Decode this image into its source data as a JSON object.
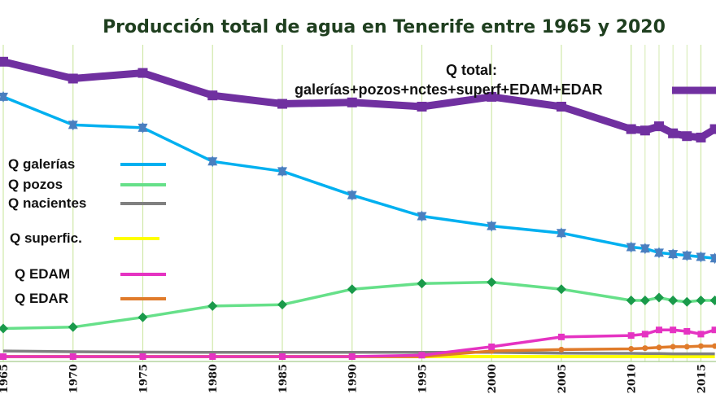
{
  "chart_data": {
    "type": "line",
    "title": "Producción total de agua  en Tenerife entre 1965 y 2020",
    "xlabel": "",
    "ylabel": "",
    "x": [
      1965,
      1970,
      1975,
      1980,
      1985,
      1990,
      1995,
      2000,
      2005,
      2010,
      2011,
      2012,
      2013,
      2014,
      2015,
      2016
    ],
    "x_tick_labels": [
      "1965",
      "1970",
      "1975",
      "1980",
      "1985",
      "1990",
      "1995",
      "2000",
      "2005",
      "2010",
      "2015"
    ],
    "grid": "vertical",
    "series": [
      {
        "name": "Q  total:",
        "name_line2": "galerías+pozos+nctes+superf+EDAM+EDAR",
        "color": "#7030a0",
        "marker": "square",
        "values": [
          210,
          198,
          202,
          186,
          180,
          181,
          178,
          185,
          178,
          162,
          161,
          164,
          159,
          157,
          156,
          162
        ]
      },
      {
        "name": "Q  galerías",
        "color": "#00b0f0",
        "marker": "star",
        "values": [
          185,
          165,
          163,
          139,
          132,
          115,
          100,
          93,
          88,
          78,
          77,
          74,
          73,
          72,
          71,
          70
        ]
      },
      {
        "name": "Q  pozos",
        "color": "#66e089",
        "marker": "diamond",
        "values": [
          20,
          21,
          28,
          36,
          37,
          48,
          52,
          53,
          48,
          40,
          40,
          42,
          40,
          39,
          40,
          40
        ]
      },
      {
        "name": "Q nacientes",
        "color": "#808080",
        "marker": "none",
        "values": [
          4,
          3.5,
          3.2,
          3,
          3,
          3,
          3,
          3,
          2.5,
          2.3,
          2.2,
          2.2,
          2,
          2,
          2,
          2
        ]
      },
      {
        "name": "Q  superfic.",
        "color": "#ffff00",
        "marker": "none",
        "values": [
          0,
          0,
          0,
          0,
          0,
          0,
          0,
          0,
          0,
          0,
          0,
          0,
          0,
          0,
          0,
          0
        ]
      },
      {
        "name": "Q  EDAM",
        "color": "#e533c2",
        "marker": "square",
        "values": [
          0,
          0,
          0,
          0,
          0,
          0,
          1,
          7,
          14,
          15,
          16,
          19,
          19,
          18,
          16,
          19
        ]
      },
      {
        "name": "Q  EDAR",
        "color": "#e07b2a",
        "marker": "circle",
        "values": [
          0,
          0,
          0,
          0,
          0,
          0,
          0,
          4,
          5,
          5.5,
          6,
          6.5,
          7,
          7,
          7.5,
          7.5
        ]
      }
    ],
    "colors": {
      "background": "#ffffff",
      "grid": "#cfe8a8",
      "title_band": "#ffffff"
    }
  }
}
